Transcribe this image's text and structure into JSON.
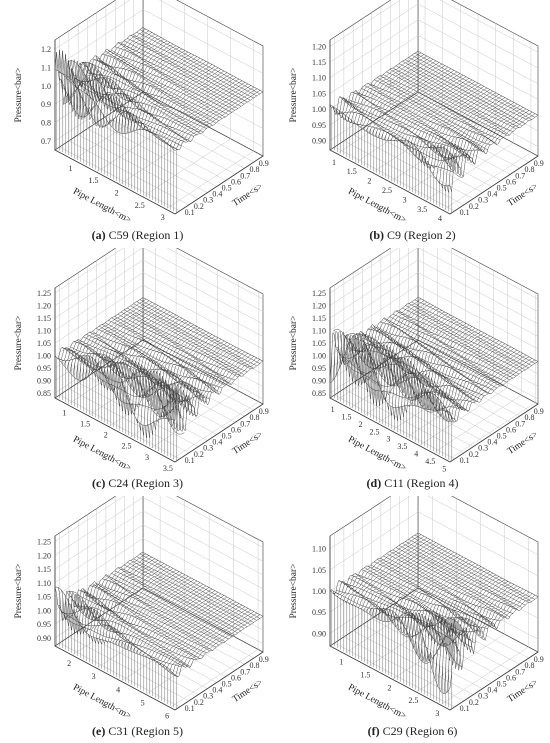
{
  "chart_data": [
    {
      "type": "surface-3d",
      "caption": {
        "letter": "(a)",
        "text": "C59 (Region 1)"
      },
      "xlabel": "Pipe Length<m>",
      "ylabel": "Time<s>",
      "zlabel": "Pressure<bar>",
      "x_ticks": [
        "1",
        "1.5",
        "2",
        "2.5",
        "3"
      ],
      "xlim": [
        0.6,
        3.2
      ],
      "y_ticks": [
        "0.1",
        "0.2",
        "0.3",
        "0.4",
        "0.5",
        "0.6",
        "0.7",
        "0.8",
        "0.9"
      ],
      "ylim": [
        0.05,
        1.0
      ],
      "z_ticks": [
        "0.7",
        "0.8",
        "0.9",
        "1.0",
        "1.1",
        "1.2"
      ],
      "zlim": [
        0.65,
        1.25
      ],
      "steady_pressure": 1.0
    },
    {
      "type": "surface-3d",
      "caption": {
        "letter": "(b)",
        "text": "C9 (Region 2)"
      },
      "xlabel": "Pipe Length<m>",
      "ylabel": "Time<s>",
      "zlabel": "Pressure<bar>",
      "x_ticks": [
        "1",
        "1.5",
        "2",
        "2.5",
        "3",
        "3.5",
        "4"
      ],
      "xlim": [
        0.8,
        4.2
      ],
      "y_ticks": [
        "0.1",
        "0.2",
        "0.3",
        "0.4",
        "0.5",
        "0.6",
        "0.7",
        "0.8",
        "0.9"
      ],
      "ylim": [
        0.05,
        1.0
      ],
      "z_ticks": [
        "0.90",
        "0.95",
        "1.00",
        "1.05",
        "1.10",
        "1.15",
        "1.20"
      ],
      "zlim": [
        0.87,
        1.22
      ],
      "steady_pressure": 1.0
    },
    {
      "type": "surface-3d",
      "caption": {
        "letter": "(c)",
        "text": "C24 (Region 3)"
      },
      "xlabel": "Pipe Length<m>",
      "ylabel": "Time<s>",
      "zlabel": "Pressure<bar>",
      "x_ticks": [
        "1",
        "1.5",
        "2",
        "2.5",
        "3",
        "3.5"
      ],
      "xlim": [
        0.7,
        3.6
      ],
      "y_ticks": [
        "0.1",
        "0.2",
        "0.3",
        "0.4",
        "0.5",
        "0.6",
        "0.7",
        "0.8",
        "0.9"
      ],
      "ylim": [
        0.05,
        1.0
      ],
      "z_ticks": [
        "0.85",
        "0.90",
        "0.95",
        "1.00",
        "1.05",
        "1.10",
        "1.15",
        "1.20",
        "1.25"
      ],
      "zlim": [
        0.83,
        1.27
      ],
      "steady_pressure": 1.0
    },
    {
      "type": "surface-3d",
      "caption": {
        "letter": "(d)",
        "text": "C11 (Region 4)"
      },
      "xlabel": "Pipe Length<m>",
      "ylabel": "Time<s>",
      "zlabel": "Pressure<bar>",
      "x_ticks": [
        "1",
        "1.5",
        "2",
        "2.5",
        "3",
        "3.5",
        "4",
        "4.5",
        "5"
      ],
      "xlim": [
        0.8,
        5.1
      ],
      "y_ticks": [
        "0.1",
        "0.2",
        "0.3",
        "0.4",
        "0.5",
        "0.6",
        "0.7",
        "0.8",
        "0.9"
      ],
      "ylim": [
        0.05,
        1.0
      ],
      "z_ticks": [
        "0.85",
        "0.90",
        "0.95",
        "1.00",
        "1.05",
        "1.10",
        "1.15",
        "1.20",
        "1.25"
      ],
      "zlim": [
        0.83,
        1.27
      ],
      "steady_pressure": 1.0
    },
    {
      "type": "surface-3d",
      "caption": {
        "letter": "(e)",
        "text": "C31 (Region 5)"
      },
      "xlabel": "Pipe Length<m>",
      "ylabel": "Time<s>",
      "zlabel": "Pressure<bar>",
      "x_ticks": [
        "2",
        "3",
        "4",
        "5",
        "6"
      ],
      "xlim": [
        1.3,
        6.2
      ],
      "y_ticks": [
        "0.1",
        "0.2",
        "0.3",
        "0.4",
        "0.5",
        "0.6",
        "0.7",
        "0.8",
        "0.9"
      ],
      "ylim": [
        0.05,
        1.0
      ],
      "z_ticks": [
        "0.90",
        "0.95",
        "1.00",
        "1.05",
        "1.10",
        "1.15",
        "1.20",
        "1.25"
      ],
      "zlim": [
        0.87,
        1.27
      ],
      "steady_pressure": 1.0
    },
    {
      "type": "surface-3d",
      "caption": {
        "letter": "(f)",
        "text": "C29 (Region 6)"
      },
      "xlabel": "Pipe Length<m>",
      "ylabel": "Time<s>",
      "zlabel": "Pressure<bar>",
      "x_ticks": [
        "1",
        "1.5",
        "2",
        "2.5",
        "3"
      ],
      "xlim": [
        0.7,
        3.2
      ],
      "y_ticks": [
        "0.1",
        "0.2",
        "0.3",
        "0.4",
        "0.5",
        "0.6",
        "0.7",
        "0.8",
        "0.9"
      ],
      "ylim": [
        0.05,
        1.0
      ],
      "z_ticks": [
        "0.90",
        "0.95",
        "1.00",
        "1.05",
        "1.10"
      ],
      "zlim": [
        0.87,
        1.13
      ],
      "steady_pressure": 1.0
    }
  ]
}
